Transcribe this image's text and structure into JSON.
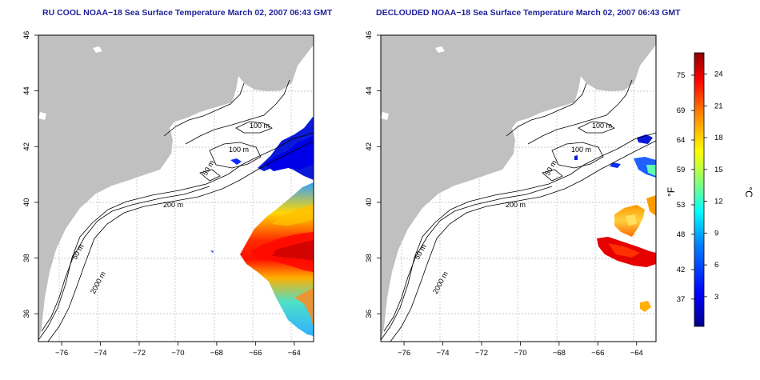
{
  "panels": [
    {
      "id": "left",
      "title": "RU COOL NOAA−18 Sea Surface Temperature March 02, 2007 06:43 GMT",
      "contour_labels": [
        "100 m",
        "100 m",
        "50 m",
        "200 m",
        "50 m",
        "2000 m"
      ]
    },
    {
      "id": "right",
      "title": "DECLOUDED NOAA−18 Sea Surface Temperature March 02, 2007 06:43 GMT",
      "contour_labels": [
        "100 m",
        "100 m",
        "50 m",
        "200 m",
        "50 m",
        "2000 m"
      ]
    }
  ],
  "axes": {
    "x_ticks": [
      "−76",
      "−74",
      "−72",
      "−70",
      "−68",
      "−66",
      "−64"
    ],
    "y_ticks": [
      "36",
      "38",
      "40",
      "42",
      "44",
      "46"
    ],
    "x_range": [
      -77.2,
      -63.0
    ],
    "y_range": [
      35.0,
      46.0
    ]
  },
  "colorbar": {
    "unit_f": "°F",
    "unit_c": "°C",
    "f_ticks": [
      "75",
      "69",
      "64",
      "59",
      "53",
      "48",
      "42",
      "37"
    ],
    "c_ticks": [
      "24",
      "21",
      "18",
      "15",
      "12",
      "9",
      "6",
      "3"
    ],
    "colors": [
      "#00008b",
      "#0000ff",
      "#0080ff",
      "#00ffff",
      "#80ff80",
      "#ffff00",
      "#ff8000",
      "#ff0000",
      "#8b0000"
    ]
  },
  "colors": {
    "land": "#c0c0c0",
    "ocean": "#ffffff",
    "grid": "#b5b5b5",
    "title": "#1e1e9a"
  }
}
